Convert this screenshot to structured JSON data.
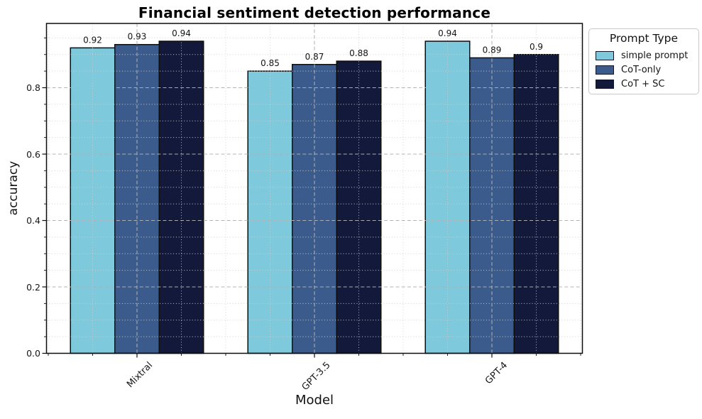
{
  "chart_data": {
    "type": "bar",
    "title": "Financial sentiment detection performance",
    "xlabel": "Model",
    "ylabel": "accuracy",
    "categories": [
      "Mixtral",
      "GPT-3.5",
      "GPT-4"
    ],
    "series": [
      {
        "name": "simple prompt",
        "color": "#7ec9dc",
        "values": [
          0.92,
          0.85,
          0.94
        ],
        "value_labels": [
          "0.92",
          "0.85",
          "0.94"
        ]
      },
      {
        "name": "CoT-only",
        "color": "#3a5b8c",
        "values": [
          0.93,
          0.87,
          0.89
        ],
        "value_labels": [
          "0.93",
          "0.87",
          "0.89"
        ]
      },
      {
        "name": "CoT + SC",
        "color": "#13193b",
        "values": [
          0.94,
          0.88,
          0.9
        ],
        "value_labels": [
          "0.94",
          "0.88",
          "0.9"
        ]
      }
    ],
    "ylim": [
      0,
      0.99
    ],
    "yticks": [
      0,
      0.2,
      0.4,
      0.6,
      0.8
    ],
    "ytick_labels": [
      "0.0",
      "0.2",
      "0.4",
      "0.6",
      "0.8"
    ],
    "grid": true,
    "legend": {
      "title": "Prompt Type",
      "position": "upper right outside"
    },
    "colors": {
      "bar_edge": "#0d0d0d",
      "grid_major": "#b3b3b3",
      "grid_minor": "#cfcfcf",
      "axis": "#0d0d0d",
      "value_label": "#141414"
    }
  }
}
